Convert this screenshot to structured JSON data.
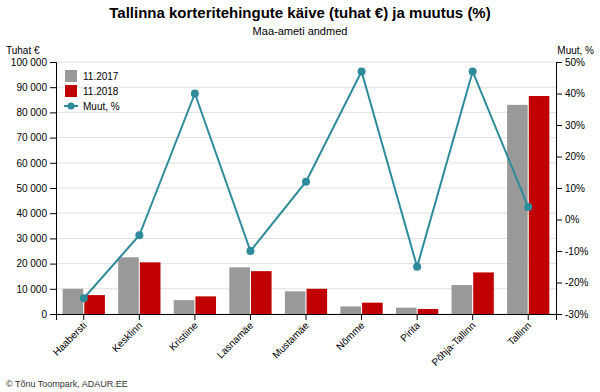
{
  "chart_data": {
    "type": "bar",
    "title": "Tallinna korteritehingute käive (tuhat €) ja muutus (%)",
    "subtitle": "Maa-ameti andmed",
    "y_label": "Tuhat €",
    "y2_label": "Muut, %",
    "categories": [
      "Haabersti",
      "Kesklinn",
      "Kristiine",
      "Lasnamäe",
      "Mustamäe",
      "Nõmme",
      "Pirita",
      "Põhja-Tallinn",
      "Tallinn"
    ],
    "series": [
      {
        "name": "11.2017",
        "color": "#999999",
        "values": [
          10000,
          22500,
          5500,
          18500,
          9000,
          3000,
          2500,
          11500,
          83000
        ]
      },
      {
        "name": "11.2018",
        "color": "#c00000",
        "values": [
          7500,
          20500,
          7000,
          17000,
          10000,
          4500,
          2000,
          16500,
          86500
        ]
      },
      {
        "name": "Muut, %",
        "type": "line",
        "axis": "y2",
        "color": "#2e8b9a",
        "marker": "circle",
        "line_style": "solid",
        "values": [
          -25,
          -5,
          40,
          -10,
          12,
          47,
          -15,
          47,
          4
        ]
      }
    ],
    "ylim": [
      0,
      100000
    ],
    "yticks": [
      0,
      {
        "value": 10000,
        "label": "10 000"
      },
      {
        "value": 20000,
        "label": "20 000"
      },
      {
        "value": 30000,
        "label": "30 000"
      },
      {
        "value": 40000,
        "label": "40 000"
      },
      {
        "value": 50000,
        "label": "50 000"
      },
      {
        "value": 60000,
        "label": "60 000"
      },
      {
        "value": 70000,
        "label": "70 000"
      },
      {
        "value": 80000,
        "label": "80 000"
      },
      {
        "value": 90000,
        "label": "90 000"
      },
      {
        "value": 100000,
        "label": "100 000"
      }
    ],
    "y2lim": [
      -30,
      50
    ],
    "y2ticks": [
      {
        "value": -30,
        "label": "-30%"
      },
      {
        "value": -20,
        "label": "-20%"
      },
      {
        "value": -10,
        "label": "-10%"
      },
      {
        "value": 0,
        "label": "0%"
      },
      {
        "value": 10,
        "label": "10%"
      },
      {
        "value": 20,
        "label": "20%"
      },
      {
        "value": 30,
        "label": "30%"
      },
      {
        "value": 40,
        "label": "40%"
      },
      {
        "value": 50,
        "label": "50%"
      }
    ],
    "grid": true,
    "legend": "upper left",
    "annotations": [
      "© Tõnu Toompark, ADAUR.EE"
    ]
  }
}
